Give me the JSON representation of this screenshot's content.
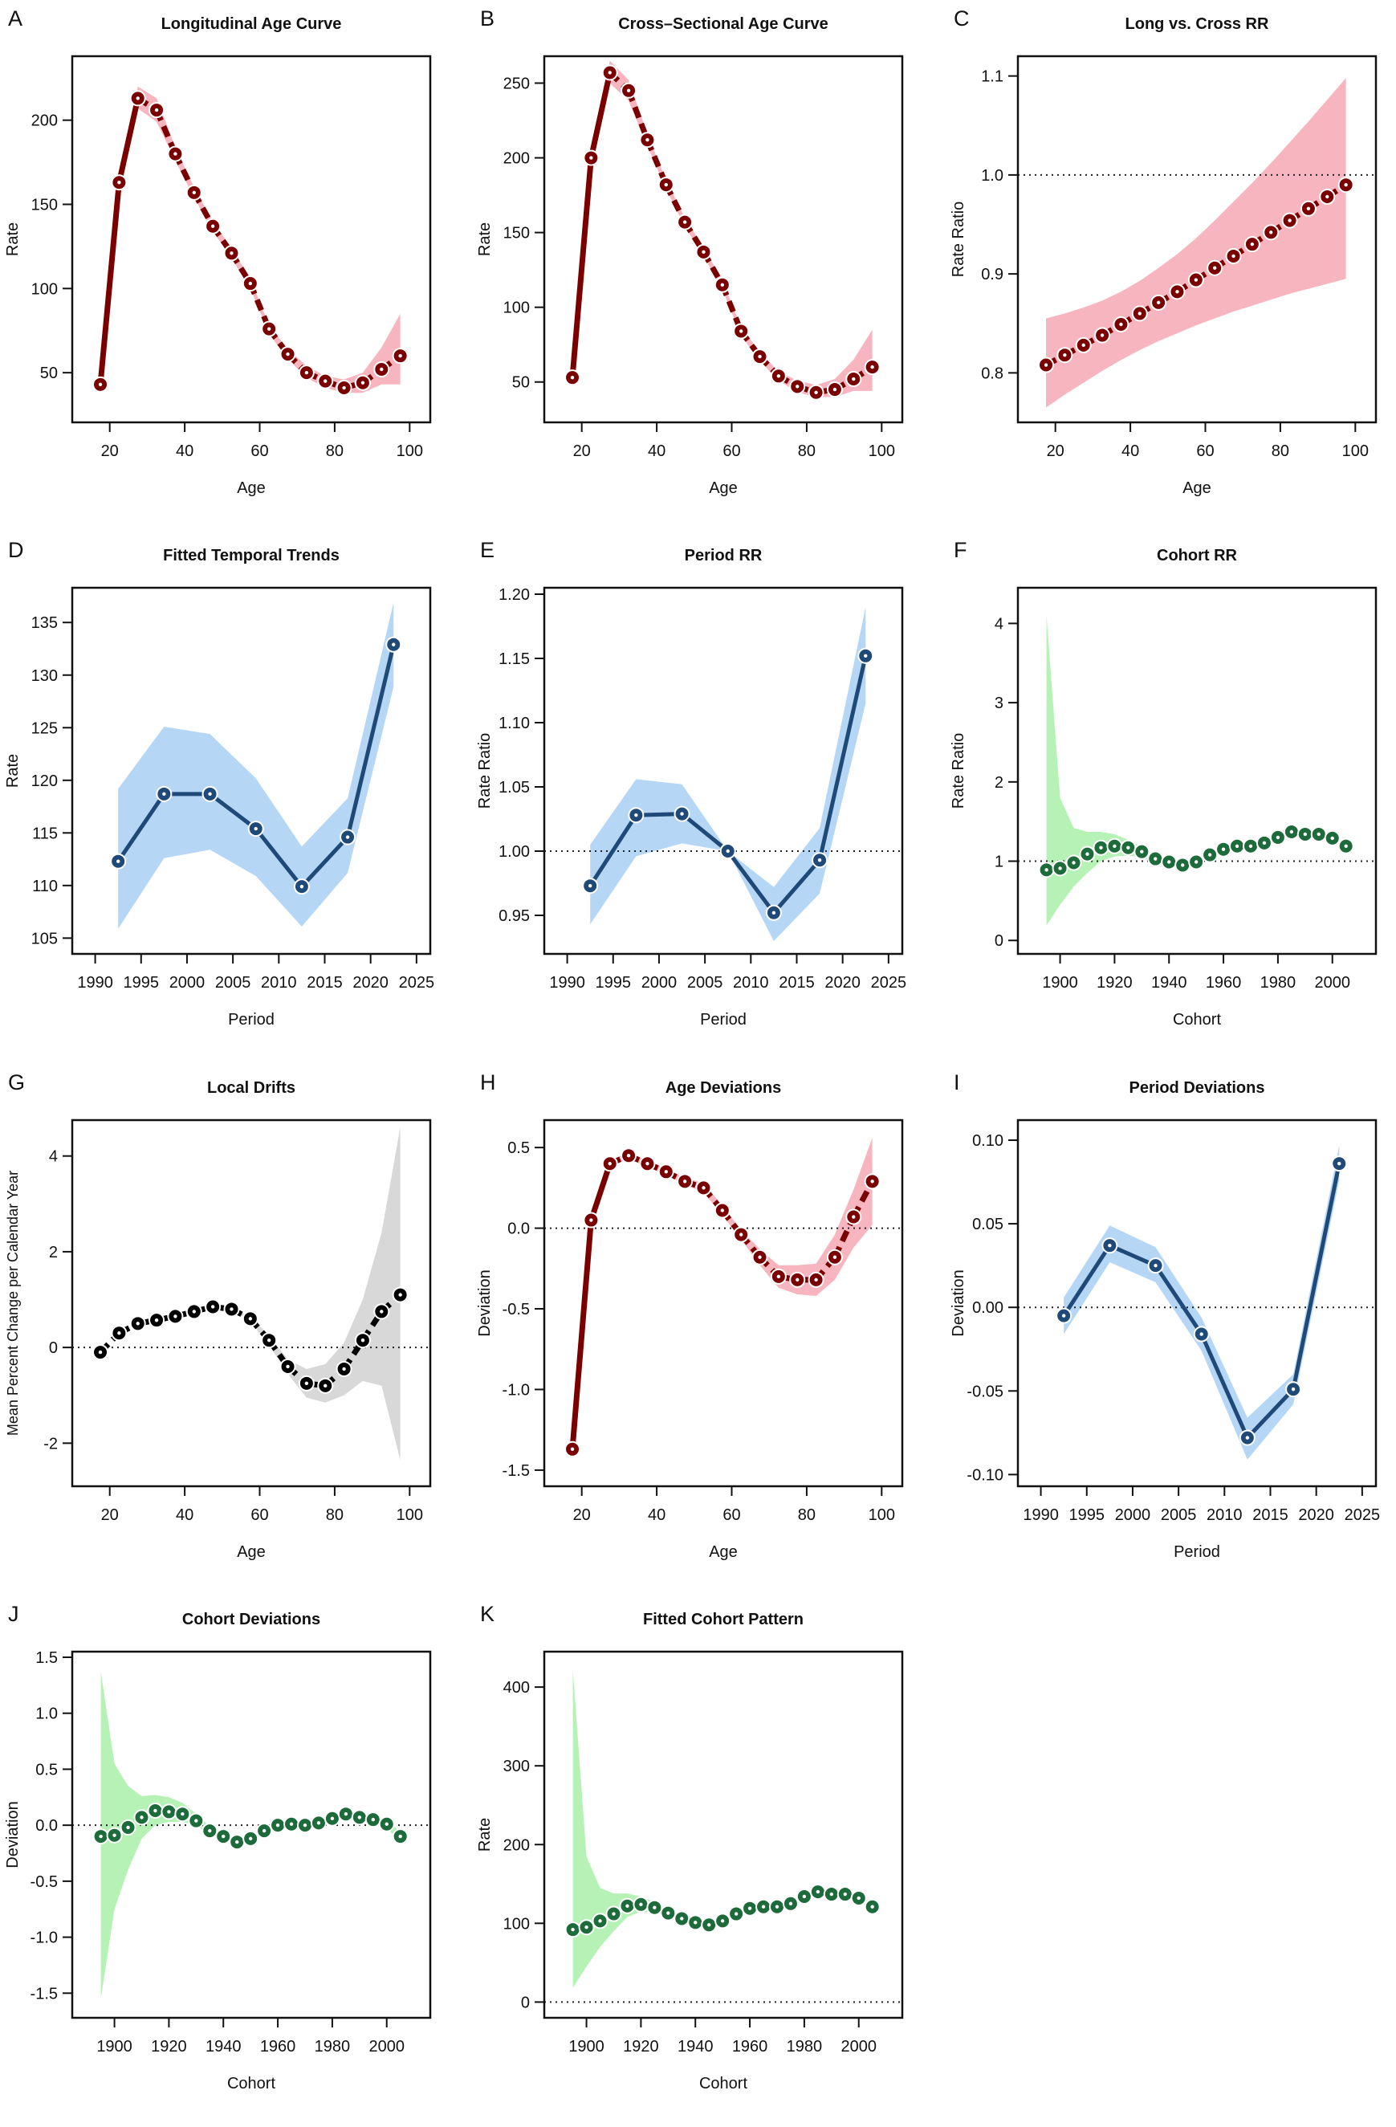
{
  "chart_data": [
    {
      "letter": "A",
      "title": "Longitudinal Age Curve",
      "type": "line",
      "xlabel": "Age",
      "ylabel": "Rate",
      "color": "red",
      "line": "mixed",
      "xlim": [
        10,
        105.5
      ],
      "ylim": [
        20.5,
        238
      ],
      "xticks": [
        "20",
        "40",
        "60",
        "80",
        "100"
      ],
      "yticks": [
        "50",
        "100",
        "150",
        "200"
      ],
      "refline": null,
      "x": [
        17.5,
        22.5,
        27.5,
        32.5,
        37.5,
        42.5,
        47.5,
        52.5,
        57.5,
        62.5,
        67.5,
        72.5,
        77.5,
        82.5,
        87.5,
        92.5,
        97.5
      ],
      "y": [
        43,
        163,
        213,
        206,
        180,
        157,
        137,
        121,
        103,
        76,
        61,
        50,
        45,
        41,
        44,
        52,
        60
      ],
      "lower": [
        43,
        163,
        207,
        199,
        176,
        154,
        134,
        118,
        100,
        73,
        58,
        47,
        41,
        38,
        38,
        43,
        43
      ],
      "upper": [
        43,
        163,
        220,
        213,
        184,
        160,
        140,
        124,
        106,
        78,
        64,
        54,
        48,
        46,
        50,
        65,
        85
      ]
    },
    {
      "letter": "B",
      "title": "Cross–Sectional Age Curve",
      "type": "line",
      "xlabel": "Age",
      "ylabel": "Rate",
      "color": "red",
      "line": "mixed",
      "xlim": [
        10,
        105.5
      ],
      "ylim": [
        23,
        268
      ],
      "xticks": [
        "20",
        "40",
        "60",
        "80",
        "100"
      ],
      "yticks": [
        "50",
        "100",
        "150",
        "200",
        "250"
      ],
      "refline": null,
      "x": [
        17.5,
        22.5,
        27.5,
        32.5,
        37.5,
        42.5,
        47.5,
        52.5,
        57.5,
        62.5,
        67.5,
        72.5,
        77.5,
        82.5,
        87.5,
        92.5,
        97.5
      ],
      "y": [
        53,
        200,
        257,
        245,
        212,
        182,
        157,
        137,
        115,
        84,
        67,
        54,
        47,
        43,
        45,
        52,
        60
      ],
      "lower": [
        53,
        200,
        250,
        238,
        208,
        179,
        154,
        134,
        112,
        81,
        64,
        51,
        43,
        40,
        40,
        44,
        44
      ],
      "upper": [
        53,
        200,
        265,
        252,
        216,
        185,
        160,
        140,
        118,
        87,
        70,
        57,
        51,
        48,
        52,
        65,
        85
      ]
    },
    {
      "letter": "C",
      "title": "Long vs. Cross RR",
      "type": "line",
      "xlabel": "Age",
      "ylabel": "Rate Ratio",
      "color": "red",
      "line": "dashed",
      "xlim": [
        10,
        105.5
      ],
      "ylim": [
        0.75,
        1.12
      ],
      "xticks": [
        "20",
        "40",
        "60",
        "80",
        "100"
      ],
      "yticks": [
        "0.8",
        "0.9",
        "1.0",
        "1.1"
      ],
      "refline": 1,
      "x": [
        17.5,
        22.5,
        27.5,
        32.5,
        37.5,
        42.5,
        47.5,
        52.5,
        57.5,
        62.5,
        67.5,
        72.5,
        77.5,
        82.5,
        87.5,
        92.5,
        97.5
      ],
      "y": [
        0.808,
        0.818,
        0.828,
        0.838,
        0.849,
        0.86,
        0.871,
        0.882,
        0.894,
        0.906,
        0.918,
        0.93,
        0.942,
        0.954,
        0.966,
        0.978,
        0.99
      ],
      "lower": [
        0.765,
        0.778,
        0.79,
        0.802,
        0.813,
        0.823,
        0.832,
        0.84,
        0.848,
        0.855,
        0.862,
        0.868,
        0.874,
        0.88,
        0.885,
        0.89,
        0.895
      ],
      "upper": [
        0.855,
        0.86,
        0.866,
        0.873,
        0.882,
        0.893,
        0.906,
        0.92,
        0.936,
        0.954,
        0.973,
        0.992,
        1.012,
        1.033,
        1.054,
        1.076,
        1.098
      ]
    },
    {
      "letter": "D",
      "title": "Fitted Temporal Trends",
      "type": "line",
      "xlabel": "Period",
      "ylabel": "Rate",
      "color": "blue",
      "line": "solid",
      "xlim": [
        1987.5,
        2026.5
      ],
      "ylim": [
        103.5,
        138.3
      ],
      "xticks": [
        "1990",
        "1995",
        "2000",
        "2005",
        "2010",
        "2015",
        "2020",
        "2025"
      ],
      "yticks": [
        "105",
        "110",
        "115",
        "120",
        "125",
        "130",
        "135"
      ],
      "refline": null,
      "x": [
        1992.5,
        1997.5,
        2002.5,
        2007.5,
        2012.5,
        2017.5,
        2022.5
      ],
      "y": [
        112.3,
        118.7,
        118.7,
        115.4,
        109.9,
        114.6,
        132.9
      ],
      "lower": [
        105.9,
        112.6,
        113.4,
        110.9,
        106.1,
        111.2,
        128.9
      ],
      "upper": [
        119.2,
        125.1,
        124.4,
        120.2,
        113.7,
        118.3,
        136.9
      ]
    },
    {
      "letter": "E",
      "title": "Period RR",
      "type": "line",
      "xlabel": "Period",
      "ylabel": "Rate Ratio",
      "color": "blue",
      "line": "solid",
      "xlim": [
        1987.5,
        2026.5
      ],
      "ylim": [
        0.92,
        1.205
      ],
      "xticks": [
        "1990",
        "1995",
        "2000",
        "2005",
        "2010",
        "2015",
        "2020",
        "2025"
      ],
      "yticks": [
        "0.95",
        "1.00",
        "1.05",
        "1.10",
        "1.15",
        "1.20"
      ],
      "refline": 1,
      "x": [
        1992.5,
        1997.5,
        2002.5,
        2007.5,
        2012.5,
        2017.5,
        2022.5
      ],
      "y": [
        0.973,
        1.028,
        1.029,
        1.0,
        0.952,
        0.993,
        1.152
      ],
      "lower": [
        0.943,
        0.996,
        1.006,
        1.0,
        0.93,
        0.967,
        1.115
      ],
      "upper": [
        1.005,
        1.056,
        1.052,
        1.0,
        0.972,
        1.018,
        1.19
      ]
    },
    {
      "letter": "F",
      "title": "Cohort RR",
      "type": "scatter",
      "xlabel": "Cohort",
      "ylabel": "Rate Ratio",
      "color": "green",
      "line": "none",
      "xlim": [
        1884.5,
        2016
      ],
      "ylim": [
        -0.17,
        4.45
      ],
      "xticks": [
        "1900",
        "1920",
        "1940",
        "1960",
        "1980",
        "2000"
      ],
      "yticks": [
        "0",
        "1",
        "2",
        "3",
        "4"
      ],
      "refline": 1,
      "x": [
        1895,
        1900,
        1905,
        1910,
        1915,
        1920,
        1925,
        1930,
        1935,
        1940,
        1945,
        1950,
        1955,
        1960,
        1965,
        1970,
        1975,
        1980,
        1985,
        1990,
        1995,
        2000,
        2005
      ],
      "y": [
        0.89,
        0.91,
        0.98,
        1.09,
        1.17,
        1.19,
        1.17,
        1.12,
        1.03,
        0.99,
        0.95,
        0.99,
        1.08,
        1.15,
        1.19,
        1.19,
        1.23,
        1.3,
        1.37,
        1.34,
        1.34,
        1.29,
        1.19
      ],
      "lower": [
        0.19,
        0.45,
        0.68,
        0.85,
        1.0,
        1.06,
        1.07,
        1.05,
        0.99,
        0.96,
        0.92,
        0.96,
        1.05,
        1.12,
        1.16,
        1.16,
        1.2,
        1.27,
        1.33,
        1.3,
        1.3,
        1.25,
        1.15
      ],
      "upper": [
        4.1,
        1.8,
        1.42,
        1.37,
        1.37,
        1.34,
        1.27,
        1.18,
        1.07,
        1.02,
        0.98,
        1.02,
        1.11,
        1.18,
        1.22,
        1.22,
        1.26,
        1.33,
        1.41,
        1.38,
        1.37,
        1.33,
        1.23
      ]
    },
    {
      "letter": "G",
      "title": "Local Drifts",
      "type": "line",
      "xlabel": "Age",
      "ylabel": "Mean Percent Change per Calendar Year",
      "color": "black",
      "line": "dashed",
      "xlim": [
        10,
        105.5
      ],
      "ylim": [
        -2.9,
        4.75
      ],
      "xticks": [
        "20",
        "40",
        "60",
        "80",
        "100"
      ],
      "yticks": [
        "-2",
        "0",
        "2",
        "4"
      ],
      "refline": 0,
      "x": [
        17.5,
        22.5,
        27.5,
        32.5,
        37.5,
        42.5,
        47.5,
        52.5,
        57.5,
        62.5,
        67.5,
        72.5,
        77.5,
        82.5,
        87.5,
        92.5,
        97.5
      ],
      "y": [
        -0.1,
        0.3,
        0.5,
        0.57,
        0.65,
        0.75,
        0.85,
        0.8,
        0.6,
        0.15,
        -0.4,
        -0.75,
        -0.8,
        -0.45,
        0.15,
        0.75,
        1.1
      ],
      "lower": [
        -0.1,
        0.3,
        0.5,
        0.57,
        0.65,
        0.75,
        0.85,
        0.78,
        0.55,
        0.05,
        -0.55,
        -1.05,
        -1.15,
        -1.0,
        -0.7,
        -0.8,
        -2.35
      ],
      "upper": [
        -0.1,
        0.3,
        0.5,
        0.57,
        0.65,
        0.75,
        0.85,
        0.82,
        0.65,
        0.25,
        -0.25,
        -0.45,
        -0.35,
        0.1,
        1.0,
        2.4,
        4.6
      ]
    },
    {
      "letter": "H",
      "title": "Age Deviations",
      "type": "line",
      "xlabel": "Age",
      "ylabel": "Deviation",
      "color": "red",
      "line": "mixed",
      "xlim": [
        10,
        105.5
      ],
      "ylim": [
        -1.6,
        0.67
      ],
      "xticks": [
        "20",
        "40",
        "60",
        "80",
        "100"
      ],
      "yticks": [
        "-1.5",
        "-1.0",
        "-0.5",
        "0.0",
        "0.5"
      ],
      "refline": 0,
      "x": [
        17.5,
        22.5,
        27.5,
        32.5,
        37.5,
        42.5,
        47.5,
        52.5,
        57.5,
        62.5,
        67.5,
        72.5,
        77.5,
        82.5,
        87.5,
        92.5,
        97.5
      ],
      "y": [
        -1.37,
        0.05,
        0.4,
        0.45,
        0.4,
        0.35,
        0.29,
        0.25,
        0.11,
        -0.04,
        -0.18,
        -0.3,
        -0.32,
        -0.32,
        -0.18,
        0.07,
        0.29
      ],
      "lower": [
        -1.37,
        0.05,
        0.38,
        0.43,
        0.38,
        0.33,
        0.27,
        0.22,
        0.08,
        -0.07,
        -0.23,
        -0.37,
        -0.41,
        -0.42,
        -0.32,
        -0.12,
        0.02
      ],
      "upper": [
        -1.37,
        0.05,
        0.42,
        0.47,
        0.42,
        0.37,
        0.31,
        0.28,
        0.14,
        -0.01,
        -0.13,
        -0.23,
        -0.23,
        -0.22,
        -0.04,
        0.24,
        0.56
      ]
    },
    {
      "letter": "I",
      "title": "Period Deviations",
      "type": "line",
      "xlabel": "Period",
      "ylabel": "Deviation",
      "color": "blue",
      "line": "solid",
      "xlim": [
        1987.5,
        2026.5
      ],
      "ylim": [
        -0.107,
        0.112
      ],
      "xticks": [
        "1990",
        "1995",
        "2000",
        "2005",
        "2010",
        "2015",
        "2020",
        "2025"
      ],
      "yticks": [
        "-0.10",
        "-0.05",
        "0.00",
        "0.05",
        "0.10"
      ],
      "refline": 0,
      "x": [
        1992.5,
        1997.5,
        2002.5,
        2007.5,
        2012.5,
        2017.5,
        2022.5
      ],
      "y": [
        -0.005,
        0.037,
        0.025,
        -0.016,
        -0.078,
        -0.049,
        0.086
      ],
      "lower": [
        -0.016,
        0.027,
        0.015,
        -0.026,
        -0.091,
        -0.058,
        0.076
      ],
      "upper": [
        0.006,
        0.049,
        0.036,
        -0.006,
        -0.066,
        -0.04,
        0.097
      ]
    },
    {
      "letter": "J",
      "title": "Cohort Deviations",
      "type": "scatter",
      "xlabel": "Cohort",
      "ylabel": "Deviation",
      "color": "green",
      "line": "none",
      "xlim": [
        1884.5,
        2016
      ],
      "ylim": [
        -1.72,
        1.55
      ],
      "xticks": [
        "1900",
        "1920",
        "1940",
        "1960",
        "1980",
        "2000"
      ],
      "yticks": [
        "-1.5",
        "-1.0",
        "-0.5",
        "0.0",
        "0.5",
        "1.0",
        "1.5"
      ],
      "refline": 0,
      "x": [
        1895,
        1900,
        1905,
        1910,
        1915,
        1920,
        1925,
        1930,
        1935,
        1940,
        1945,
        1950,
        1955,
        1960,
        1965,
        1970,
        1975,
        1980,
        1985,
        1990,
        1995,
        2000,
        2005
      ],
      "y": [
        -0.1,
        -0.09,
        -0.02,
        0.07,
        0.13,
        0.12,
        0.1,
        0.04,
        -0.05,
        -0.1,
        -0.15,
        -0.12,
        -0.05,
        0.0,
        0.01,
        0.0,
        0.02,
        0.06,
        0.1,
        0.07,
        0.05,
        0.01,
        -0.1
      ],
      "lower": [
        -1.55,
        -0.75,
        -0.4,
        -0.12,
        0.0,
        0.03,
        0.03,
        0.0,
        -0.08,
        -0.13,
        -0.18,
        -0.15,
        -0.08,
        -0.03,
        -0.02,
        -0.03,
        -0.01,
        0.03,
        0.06,
        0.03,
        0.01,
        -0.03,
        -0.14
      ],
      "upper": [
        1.37,
        0.55,
        0.35,
        0.26,
        0.27,
        0.25,
        0.2,
        0.1,
        -0.01,
        -0.07,
        -0.12,
        -0.09,
        -0.02,
        0.03,
        0.04,
        0.03,
        0.05,
        0.09,
        0.14,
        0.11,
        0.09,
        0.05,
        -0.06
      ]
    },
    {
      "letter": "K",
      "title": "Fitted Cohort Pattern",
      "type": "scatter",
      "xlabel": "Cohort",
      "ylabel": "Rate",
      "color": "green",
      "line": "none",
      "xlim": [
        1884.5,
        2016
      ],
      "ylim": [
        -20,
        445
      ],
      "xticks": [
        "1900",
        "1920",
        "1940",
        "1960",
        "1980",
        "2000"
      ],
      "yticks": [
        "0",
        "100",
        "200",
        "300",
        "400"
      ],
      "refline": 0,
      "x": [
        1895,
        1900,
        1905,
        1910,
        1915,
        1920,
        1925,
        1930,
        1935,
        1940,
        1945,
        1950,
        1955,
        1960,
        1965,
        1970,
        1975,
        1980,
        1985,
        1990,
        1995,
        2000,
        2005
      ],
      "y": [
        92,
        95,
        103,
        112,
        122,
        124,
        120,
        113,
        106,
        101,
        98,
        103,
        112,
        119,
        121,
        121,
        125,
        134,
        140,
        137,
        137,
        132,
        121
      ],
      "lower": [
        18,
        45,
        70,
        90,
        108,
        115,
        114,
        109,
        103,
        98,
        95,
        100,
        109,
        116,
        118,
        118,
        121,
        130,
        135,
        133,
        133,
        128,
        116
      ],
      "upper": [
        422,
        185,
        145,
        138,
        138,
        134,
        127,
        118,
        109,
        104,
        101,
        106,
        115,
        122,
        124,
        124,
        129,
        138,
        145,
        141,
        141,
        136,
        126
      ]
    }
  ],
  "colors": {
    "red": {
      "line": "#7a0000",
      "band": "#f7b6bf"
    },
    "blue": {
      "line": "#1f4a78",
      "band": "#b6d6f6"
    },
    "green": {
      "line": "#1d6a3a",
      "band": "#b6f2b6"
    },
    "black": {
      "line": "#000000",
      "band": "#d8d8d8"
    }
  }
}
